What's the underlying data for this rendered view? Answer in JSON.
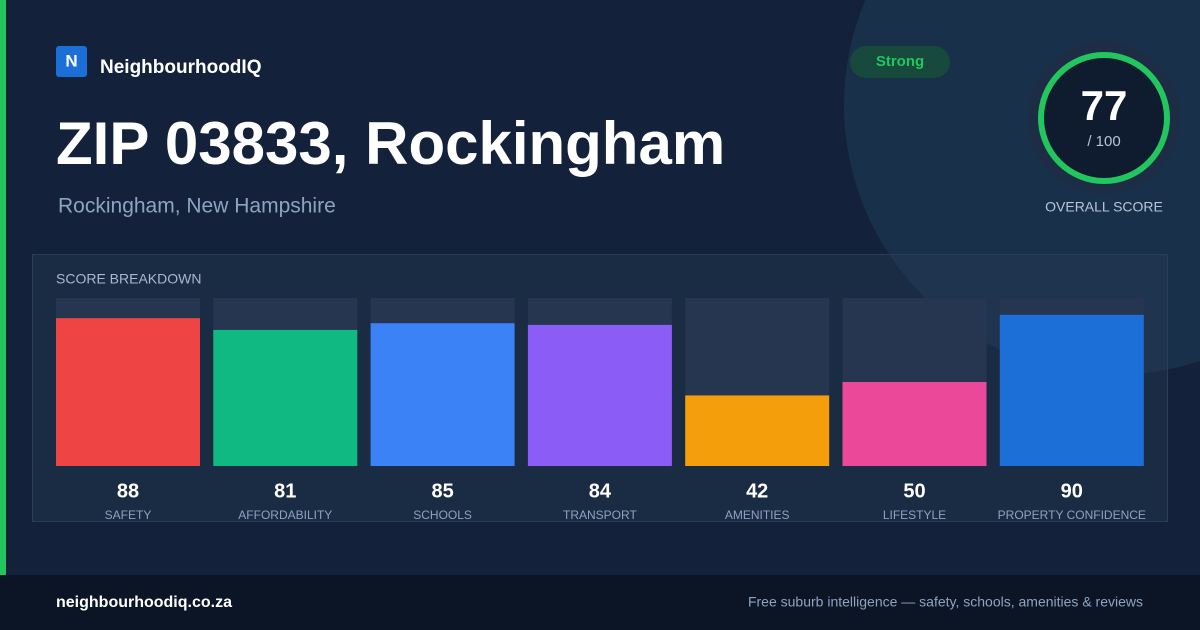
{
  "header": {
    "logo": "N",
    "brand": "NeighbourhoodIQ",
    "badge": "Strong"
  },
  "title": "ZIP 03833, Rockingham",
  "subtitle": "Rockingham, New Hampshire",
  "score": {
    "value": "77",
    "max": "/ 100",
    "label": "OVERALL SCORE"
  },
  "chart_data": {
    "type": "bar",
    "title": "SCORE BREAKDOWN",
    "categories": [
      "SAFETY",
      "AFFORDABILITY",
      "SCHOOLS",
      "TRANSPORT",
      "AMENITIES",
      "LIFESTYLE",
      "PROPERTY CONFIDENCE"
    ],
    "values": [
      88,
      81,
      85,
      84,
      42,
      50,
      90
    ],
    "colors": [
      "#ef4444",
      "#10b981",
      "#3b82f6",
      "#8b5cf6",
      "#f59e0b",
      "#ec4899",
      "#1d6fd8"
    ],
    "ylim": [
      0,
      100
    ]
  },
  "footer": {
    "site": "neighbourhoodiq.co.za",
    "tagline": "Free suburb intelligence — safety, schools, amenities & reviews"
  }
}
